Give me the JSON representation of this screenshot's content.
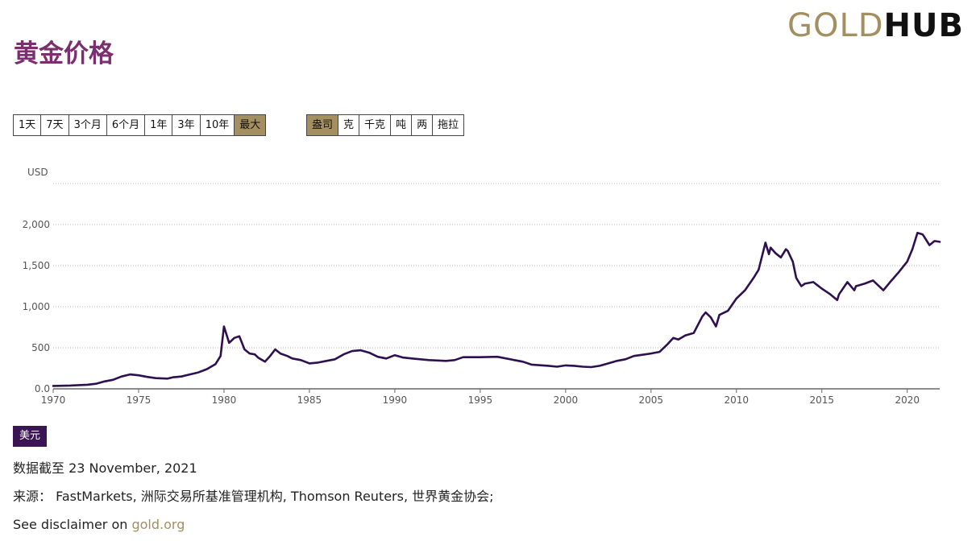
{
  "brand": {
    "part1": "GOLD",
    "part2": "HUB"
  },
  "page_title": "黄金价格",
  "period_buttons": [
    {
      "label": "1天",
      "active": false
    },
    {
      "label": "7天",
      "active": false
    },
    {
      "label": "3个月",
      "active": false
    },
    {
      "label": "6个月",
      "active": false
    },
    {
      "label": "1年",
      "active": false
    },
    {
      "label": "3年",
      "active": false
    },
    {
      "label": "10年",
      "active": false
    },
    {
      "label": "最大",
      "active": true
    }
  ],
  "unit_buttons": [
    {
      "label": "盎司",
      "active": true
    },
    {
      "label": "克",
      "active": false
    },
    {
      "label": "千克",
      "active": false
    },
    {
      "label": "吨",
      "active": false
    },
    {
      "label": "两",
      "active": false
    },
    {
      "label": "拖拉",
      "active": false
    }
  ],
  "currency_badge": "美元",
  "data_note": "数据截至 23 November, 2021",
  "source_note": "来源： FastMarkets, 洲际交易所基准管理机构, Thomson Reuters, 世界黄金协会;",
  "disclaimer": {
    "prefix": "See disclaimer on ",
    "link": "gold.org"
  },
  "colors": {
    "line": "#2e1050",
    "accent": "#a38f5f",
    "title": "#7b2f6e",
    "badge": "#3b1453"
  },
  "chart_data": {
    "type": "line",
    "ylabel": "USD",
    "xlim": [
      1970,
      2021.9
    ],
    "ylim": [
      0,
      2500
    ],
    "yticks": [
      0,
      500,
      1000,
      1500,
      2000
    ],
    "ytick_labels": [
      "0.0",
      "500",
      "1,000",
      "1,500",
      "2,000"
    ],
    "xticks": [
      1970,
      1975,
      1980,
      1985,
      1990,
      1995,
      2000,
      2005,
      2010,
      2015,
      2020
    ],
    "xtick_labels": [
      "1970",
      "1975",
      "1980",
      "1985",
      "1990",
      "1995",
      "2000",
      "2005",
      "2010",
      "2015",
      "2020"
    ],
    "grid": true,
    "series": [
      {
        "name": "美元",
        "x": [
          1970,
          1971,
          1972,
          1972.5,
          1973,
          1973.5,
          1974,
          1974.5,
          1975,
          1975.5,
          1976,
          1976.7,
          1977,
          1977.5,
          1978,
          1978.5,
          1979,
          1979.5,
          1979.8,
          1980,
          1980.3,
          1980.6,
          1980.9,
          1981.2,
          1981.5,
          1981.8,
          1982,
          1982.4,
          1982.7,
          1983,
          1983.3,
          1983.7,
          1984,
          1984.5,
          1985,
          1985.5,
          1986,
          1986.5,
          1987,
          1987.5,
          1988,
          1988.5,
          1989,
          1989.5,
          1990,
          1990.5,
          1991,
          1991.5,
          1992,
          1992.5,
          1993,
          1993.5,
          1994,
          1995,
          1996,
          1997,
          1997.5,
          1998,
          1999,
          1999.5,
          2000,
          2000.5,
          2001,
          2001.5,
          2002,
          2002.5,
          2003,
          2003.5,
          2004,
          2004.5,
          2005,
          2005.5,
          2006,
          2006.3,
          2006.6,
          2007,
          2007.5,
          2008,
          2008.2,
          2008.5,
          2008.8,
          2009,
          2009.5,
          2010,
          2010.5,
          2011,
          2011.3,
          2011.7,
          2011.9,
          2012,
          2012.3,
          2012.6,
          2012.9,
          2013,
          2013.3,
          2013.5,
          2013.8,
          2014,
          2014.5,
          2015,
          2015.5,
          2015.9,
          2016,
          2016.5,
          2016.9,
          2017,
          2017.5,
          2018,
          2018.6,
          2019,
          2019.5,
          2020,
          2020.3,
          2020.6,
          2020.9,
          2021,
          2021.3,
          2021.6,
          2021.9
        ],
        "values": [
          35,
          40,
          50,
          62,
          90,
          110,
          150,
          175,
          165,
          145,
          130,
          125,
          140,
          150,
          175,
          200,
          240,
          300,
          400,
          760,
          560,
          620,
          640,
          480,
          430,
          420,
          380,
          330,
          400,
          480,
          430,
          400,
          370,
          350,
          310,
          320,
          340,
          360,
          420,
          460,
          470,
          440,
          390,
          370,
          410,
          380,
          370,
          360,
          350,
          345,
          340,
          350,
          385,
          385,
          390,
          350,
          330,
          295,
          280,
          270,
          285,
          280,
          270,
          265,
          280,
          310,
          340,
          360,
          400,
          415,
          430,
          450,
          550,
          620,
          600,
          650,
          680,
          880,
          930,
          870,
          760,
          900,
          950,
          1100,
          1200,
          1350,
          1450,
          1780,
          1640,
          1720,
          1650,
          1600,
          1700,
          1680,
          1550,
          1350,
          1250,
          1280,
          1300,
          1220,
          1150,
          1080,
          1150,
          1300,
          1200,
          1250,
          1280,
          1320,
          1200,
          1300,
          1420,
          1550,
          1700,
          1900,
          1880,
          1850,
          1750,
          1800,
          1790
        ]
      }
    ]
  }
}
